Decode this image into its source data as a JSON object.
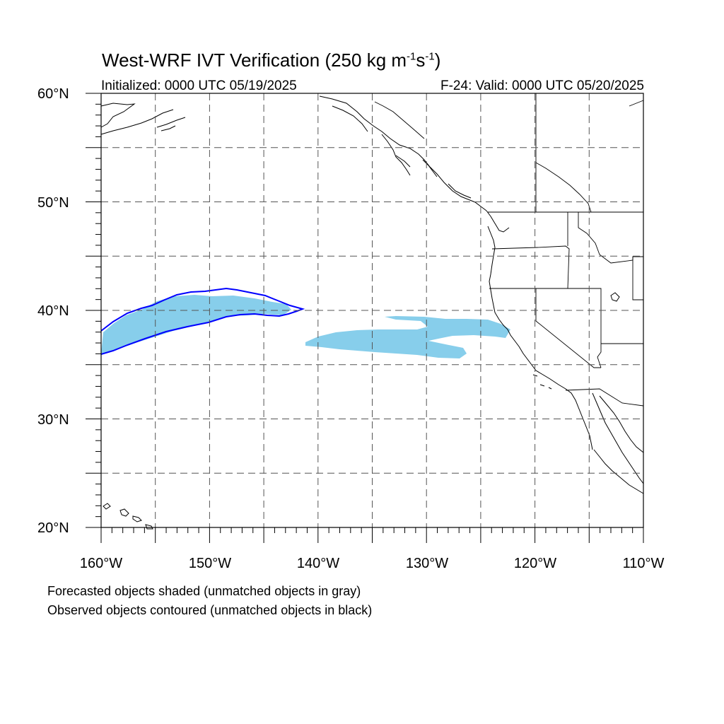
{
  "title": {
    "prefix": "West-WRF IVT Verification (250 kg m",
    "exp1": "-1",
    "mid": "s",
    "exp2": "-1",
    "suffix": ")"
  },
  "subtitle_left": "Initialized: 0000 UTC 05/19/2025",
  "subtitle_right": "F-24: Valid: 0000 UTC 05/20/2025",
  "lat_labels": [
    "60°N",
    "50°N",
    "40°N",
    "30°N",
    "20°N"
  ],
  "lon_labels": [
    "160°W",
    "150°W",
    "140°W",
    "130°W",
    "120°W",
    "110°W"
  ],
  "notes": [
    "Forecasted objects shaded (unmatched objects in gray)",
    "Observed objects contoured (unmatched objects in black)"
  ],
  "map": {
    "lon_range": [
      -160,
      -110
    ],
    "lat_range": [
      20,
      60
    ],
    "grid_lons": [
      -155,
      -150,
      -145,
      -140,
      -135,
      -130,
      -125,
      -120,
      -115
    ],
    "grid_lats": [
      55,
      50,
      45,
      40,
      35,
      30,
      25
    ],
    "forecast_fill_color": "#87ceeb",
    "observed_contour_color": "#0000ff",
    "coastline_color": "#000000",
    "grid_color": "#555555"
  }
}
